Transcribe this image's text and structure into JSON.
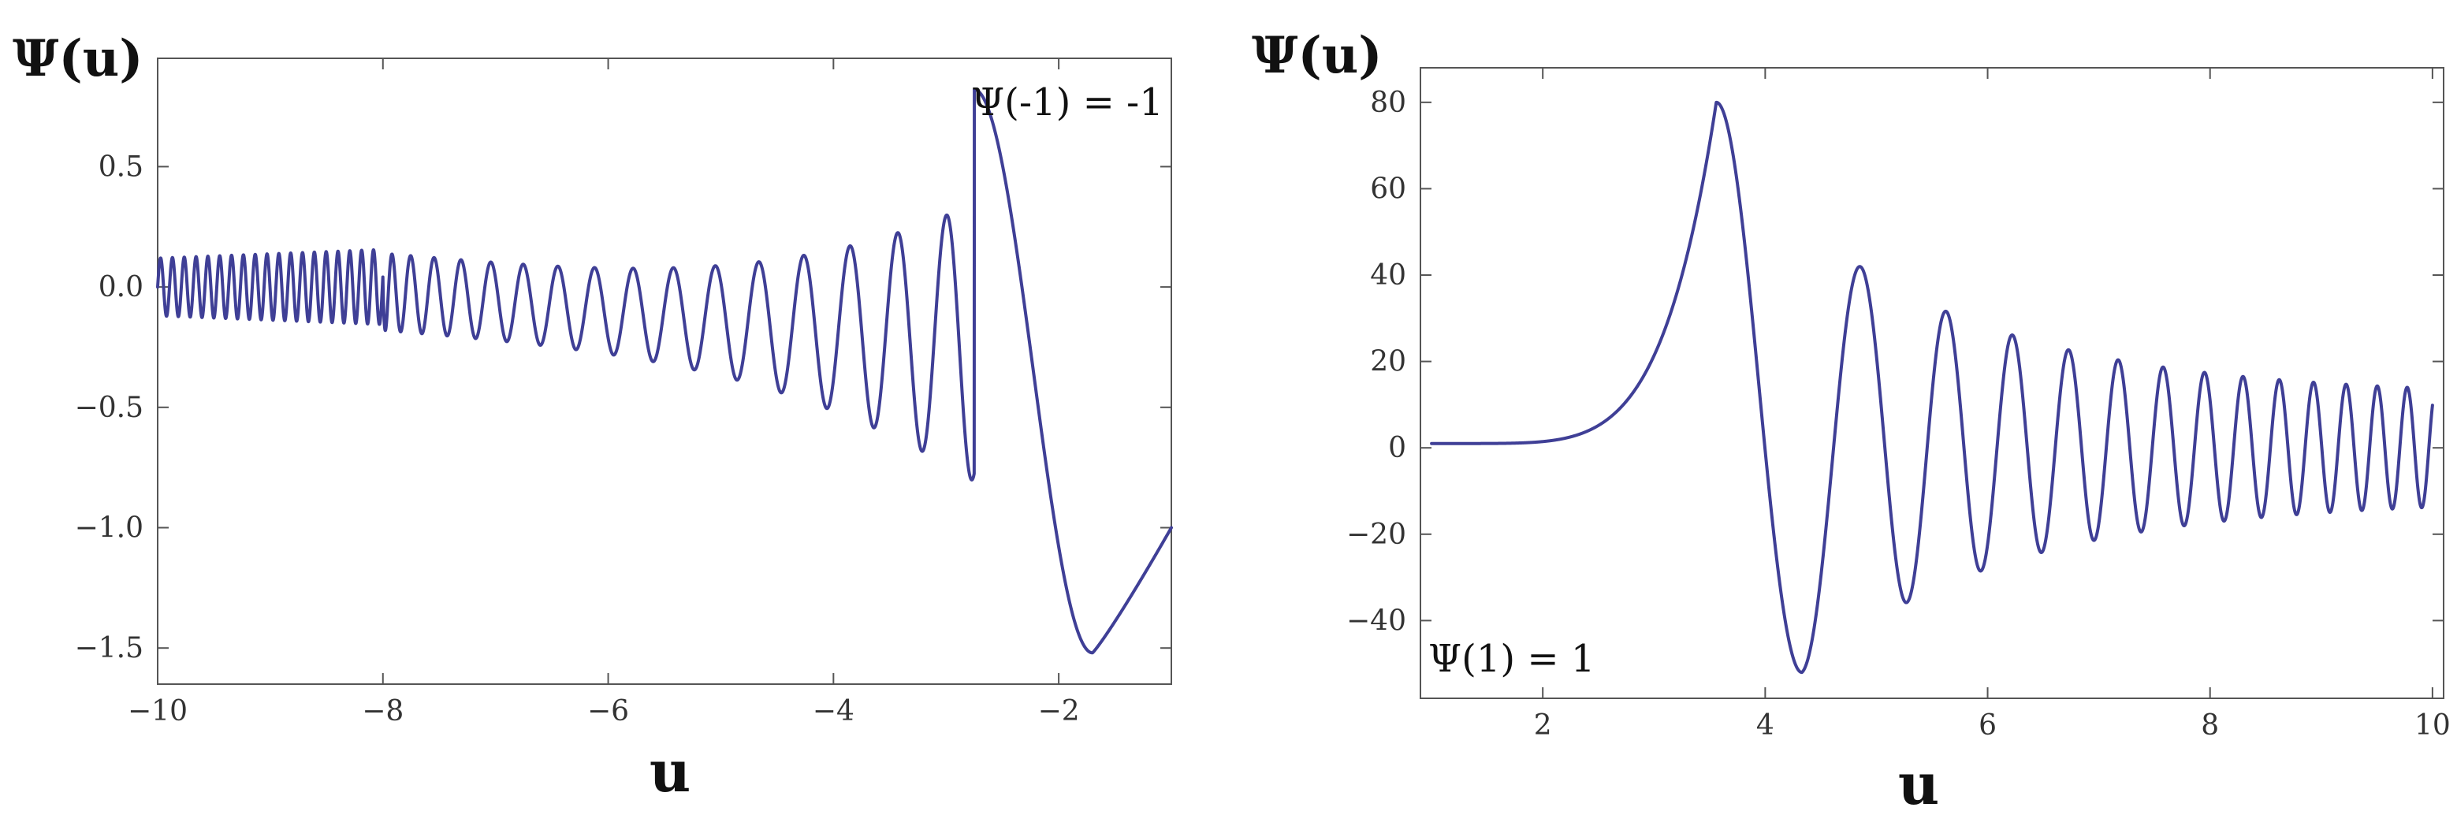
{
  "colors": {
    "curve": "#3f3f96",
    "frame": "#555555"
  },
  "chart_data": [
    {
      "type": "line",
      "title": "",
      "ylabel": "Ψ(u)",
      "xlabel": "u",
      "xlim": [
        -10,
        -1
      ],
      "ylim": [
        -1.65,
        0.95
      ],
      "x_ticks": [
        -10,
        -8,
        -6,
        -4,
        -2
      ],
      "x_tick_labels": [
        "−10",
        "−8",
        "−6",
        "−4",
        "−2"
      ],
      "y_ticks": [
        0.5,
        0.0,
        -0.5,
        -1.0,
        -1.5
      ],
      "y_tick_labels": [
        "0.5",
        "0.0",
        "−0.5",
        "−1.0",
        "−1.5"
      ],
      "grid": false,
      "annotation": "Ψ(-1) = -1",
      "series": [
        {
          "x": [
            -10.0,
            -8.05,
            -8.0,
            -7.75,
            -7.2,
            -6.7,
            -6.3,
            -5.9,
            -5.5,
            -5.1,
            -4.7,
            -4.3,
            -3.9,
            -3.3,
            -2.75,
            -1.7,
            -1.0
          ],
          "y": [
            0.0,
            0.15,
            0.05,
            -0.18,
            -0.19,
            -0.21,
            -0.24,
            -0.28,
            -0.33,
            -0.37,
            -0.4,
            -0.48,
            -0.52,
            -0.63,
            0.82,
            -1.52,
            -1.0
          ]
        }
      ]
    },
    {
      "type": "line",
      "title": "",
      "ylabel": "Ψ(u)",
      "xlabel": "u",
      "xlim": [
        0.9,
        10.1
      ],
      "ylim": [
        -58,
        88
      ],
      "x_ticks": [
        2,
        4,
        6,
        8,
        10
      ],
      "x_tick_labels": [
        "2",
        "4",
        "6",
        "8",
        "10"
      ],
      "y_ticks": [
        80,
        60,
        40,
        20,
        0,
        -20,
        -40
      ],
      "y_tick_labels": [
        "80",
        "60",
        "40",
        "20",
        "0",
        "−20",
        "−40"
      ],
      "grid": false,
      "annotation": "Ψ(1) = 1",
      "series": [
        {
          "x": [
            1.0,
            2.0,
            2.5,
            3.0,
            3.56,
            4.0,
            4.33,
            4.75,
            5.07,
            5.37,
            5.63,
            5.87,
            6.1,
            6.33,
            10.0
          ],
          "y": [
            1.0,
            3.0,
            8.0,
            30.0,
            80.0,
            10.0,
            -52.0,
            42.0,
            -38.0,
            33.5,
            -31.0,
            28.5,
            -26.5,
            25.0,
            12.0
          ]
        }
      ]
    }
  ]
}
